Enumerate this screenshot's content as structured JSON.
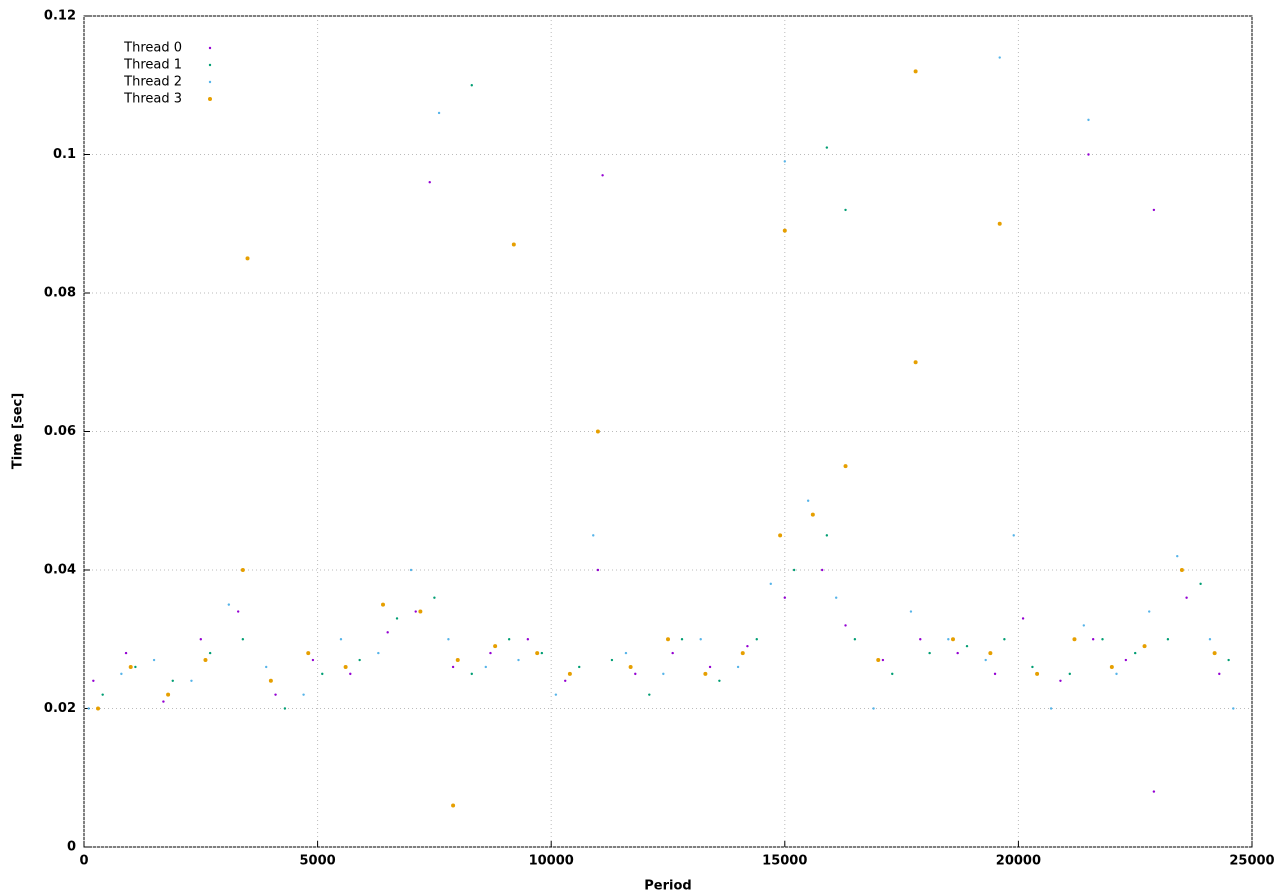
{
  "chart_data": {
    "type": "scatter",
    "x_label": "Period",
    "y_label": "Time [sec]",
    "xlim": [
      0,
      25000
    ],
    "xticks": [
      0,
      5000,
      10000,
      15000,
      20000,
      25000
    ],
    "ylim": [
      0,
      0.12
    ],
    "yticks": [
      0,
      0.02,
      0.04,
      0.06,
      0.08,
      0.1,
      0.12
    ],
    "grid": true,
    "legend": "top-left",
    "series": [
      {
        "name": "Thread 0",
        "color": "#9400d3",
        "x": [
          200,
          900,
          1700,
          2500,
          3300,
          4100,
          4900,
          5700,
          6500,
          7100,
          7900,
          8700,
          9500,
          10300,
          11000,
          11800,
          12600,
          13400,
          14200,
          15000,
          15800,
          16300,
          17100,
          17900,
          18700,
          19500,
          20100,
          20900,
          21600,
          22300,
          22900,
          23600,
          24300,
          7400,
          11100,
          21500,
          22900
        ],
        "values": [
          0.024,
          0.028,
          0.021,
          0.03,
          0.034,
          0.022,
          0.027,
          0.025,
          0.031,
          0.034,
          0.026,
          0.028,
          0.03,
          0.024,
          0.04,
          0.025,
          0.028,
          0.026,
          0.029,
          0.036,
          0.04,
          0.032,
          0.027,
          0.03,
          0.028,
          0.025,
          0.033,
          0.024,
          0.03,
          0.027,
          0.008,
          0.036,
          0.025,
          0.096,
          0.097,
          0.1,
          0.092
        ]
      },
      {
        "name": "Thread 1",
        "color": "#009e73",
        "x": [
          400,
          1100,
          1900,
          2700,
          3400,
          4300,
          5100,
          5900,
          6700,
          7500,
          8300,
          9100,
          9800,
          10600,
          11300,
          12100,
          12800,
          13600,
          14400,
          15200,
          15900,
          16500,
          17300,
          18100,
          18900,
          19700,
          20300,
          21100,
          21800,
          22500,
          23200,
          23900,
          24500,
          8300,
          15900,
          16300
        ],
        "values": [
          0.022,
          0.026,
          0.024,
          0.028,
          0.03,
          0.02,
          0.025,
          0.027,
          0.033,
          0.036,
          0.025,
          0.03,
          0.028,
          0.026,
          0.027,
          0.022,
          0.03,
          0.024,
          0.03,
          0.04,
          0.045,
          0.03,
          0.025,
          0.028,
          0.029,
          0.03,
          0.026,
          0.025,
          0.03,
          0.028,
          0.03,
          0.038,
          0.027,
          0.11,
          0.101,
          0.092
        ]
      },
      {
        "name": "Thread 2",
        "color": "#56b4e9",
        "x": [
          100,
          800,
          1500,
          2300,
          3100,
          3900,
          4700,
          5500,
          6300,
          7000,
          7800,
          8600,
          9300,
          10100,
          10900,
          11600,
          12400,
          13200,
          14000,
          14700,
          15500,
          16100,
          16900,
          17700,
          18500,
          19300,
          19900,
          20700,
          21400,
          22100,
          22800,
          23400,
          24100,
          24600,
          7600,
          19600,
          21500,
          15000
        ],
        "values": [
          0.02,
          0.025,
          0.027,
          0.024,
          0.035,
          0.026,
          0.022,
          0.03,
          0.028,
          0.04,
          0.03,
          0.026,
          0.027,
          0.022,
          0.045,
          0.028,
          0.025,
          0.03,
          0.026,
          0.038,
          0.05,
          0.036,
          0.02,
          0.034,
          0.03,
          0.027,
          0.045,
          0.02,
          0.032,
          0.025,
          0.034,
          0.042,
          0.03,
          0.02,
          0.106,
          0.114,
          0.105,
          0.099
        ]
      },
      {
        "name": "Thread 3",
        "color": "#e69f00",
        "x": [
          300,
          1000,
          1800,
          2600,
          3400,
          4000,
          4800,
          5600,
          6400,
          7200,
          8000,
          8800,
          9700,
          10400,
          11000,
          11700,
          12500,
          13300,
          14100,
          14900,
          15600,
          16300,
          17000,
          17800,
          18600,
          19400,
          19600,
          20400,
          21200,
          22000,
          22700,
          23500,
          24200,
          7900,
          17800,
          3500,
          9200,
          15000
        ],
        "values": [
          0.02,
          0.026,
          0.022,
          0.027,
          0.04,
          0.024,
          0.028,
          0.026,
          0.035,
          0.034,
          0.027,
          0.029,
          0.028,
          0.025,
          0.06,
          0.026,
          0.03,
          0.025,
          0.028,
          0.045,
          0.048,
          0.055,
          0.027,
          0.07,
          0.03,
          0.028,
          0.09,
          0.025,
          0.03,
          0.026,
          0.029,
          0.04,
          0.028,
          0.006,
          0.112,
          0.085,
          0.087,
          0.089
        ]
      }
    ]
  }
}
